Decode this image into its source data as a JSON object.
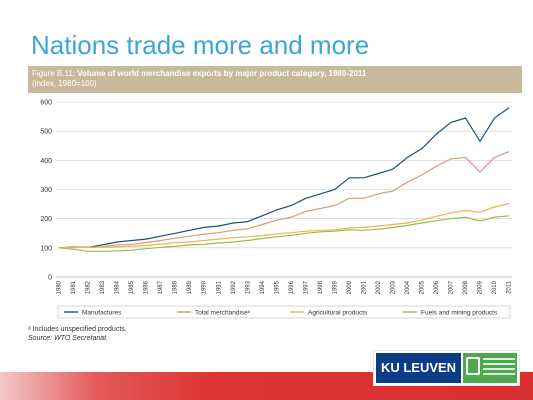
{
  "slide": {
    "title": "Nations trade more and more",
    "figure_label": "Figure B.11:",
    "figure_title": "Volume of world merchandise exports by major product category, 1980-2011",
    "figure_subtitle": "(index, 1980=100)",
    "footnote": "ᵃ Includes unspecified products.",
    "source": "Source: WTO Secretariat.",
    "logo_text": "KU LEUVEN"
  },
  "chart_data": {
    "type": "line",
    "x": [
      1980,
      1981,
      1982,
      1983,
      1984,
      1985,
      1986,
      1987,
      1988,
      1989,
      1990,
      1991,
      1992,
      1993,
      1994,
      1995,
      1996,
      1997,
      1998,
      1999,
      2000,
      2001,
      2002,
      2003,
      2004,
      2005,
      2006,
      2007,
      2008,
      2009,
      2010,
      2011
    ],
    "ylim": [
      0,
      600
    ],
    "yticks": [
      0,
      100,
      200,
      300,
      400,
      500,
      600
    ],
    "grid": true,
    "legend_position": "bottom",
    "series": [
      {
        "name": "Manufactures",
        "color": "#1f4e79",
        "values": [
          100,
          103,
          102,
          110,
          120,
          125,
          130,
          140,
          150,
          160,
          170,
          175,
          185,
          190,
          210,
          230,
          245,
          270,
          285,
          300,
          340,
          340,
          355,
          370,
          410,
          440,
          490,
          530,
          545,
          465,
          545,
          580
        ]
      },
      {
        "name": "Total merchandiseᵃ",
        "color": "#d99a7a",
        "values": [
          100,
          102,
          101,
          104,
          110,
          112,
          118,
          125,
          133,
          140,
          147,
          152,
          160,
          165,
          180,
          195,
          205,
          225,
          235,
          245,
          270,
          270,
          285,
          295,
          325,
          350,
          380,
          405,
          410,
          360,
          410,
          430
        ]
      },
      {
        "name": "Agricultural products",
        "color": "#f0b34a",
        "values": [
          100,
          101,
          102,
          103,
          104,
          106,
          108,
          112,
          118,
          120,
          125,
          130,
          135,
          138,
          142,
          148,
          152,
          157,
          160,
          162,
          168,
          170,
          175,
          180,
          185,
          195,
          208,
          220,
          228,
          222,
          240,
          252
        ]
      },
      {
        "name": "Fuels and mining products",
        "color": "#8fc14a",
        "values": [
          100,
          95,
          88,
          88,
          90,
          92,
          97,
          102,
          105,
          110,
          112,
          117,
          120,
          125,
          132,
          138,
          143,
          150,
          155,
          157,
          162,
          160,
          164,
          170,
          177,
          185,
          193,
          200,
          205,
          192,
          205,
          210
        ]
      }
    ]
  }
}
